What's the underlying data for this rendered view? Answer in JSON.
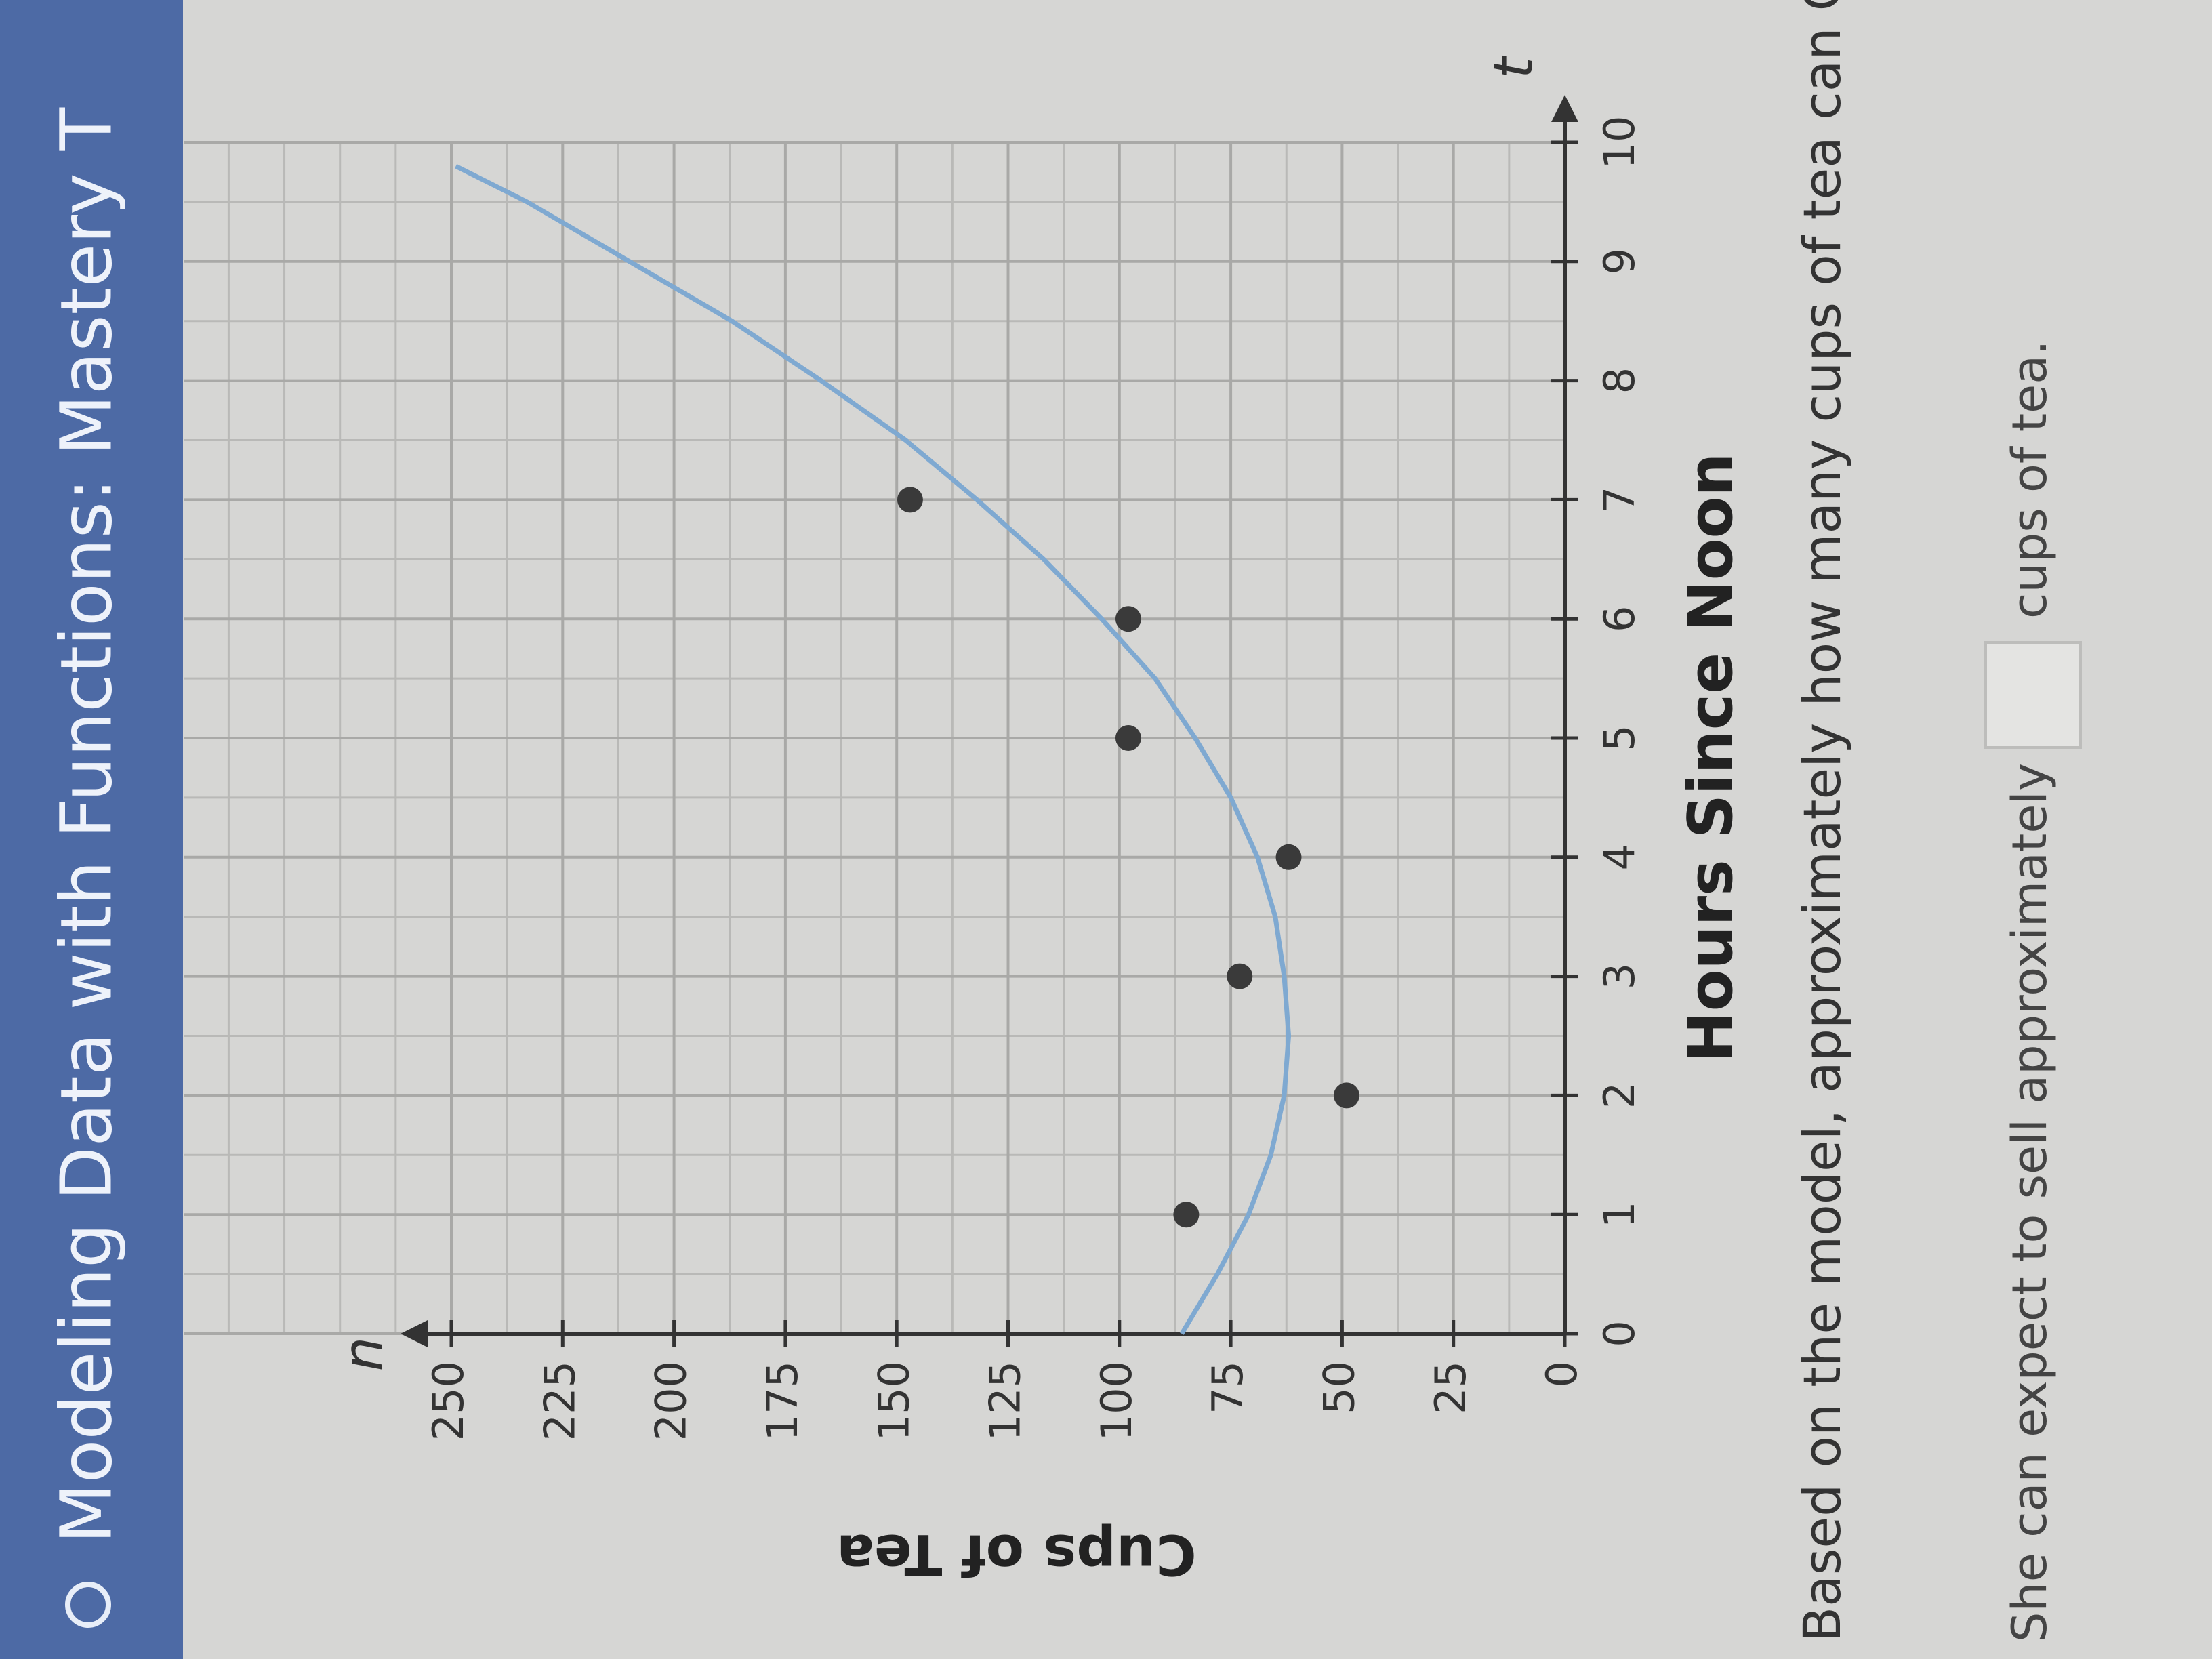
{
  "header": {
    "title": "Modeling Data with Functions: Mastery T"
  },
  "chart_data": {
    "type": "scatter",
    "y_label": "Cups of Tea",
    "x_label": "Hours Since Noon",
    "x_axis_symbol": "t",
    "y_axis_symbol": "n",
    "xlim": [
      0,
      10
    ],
    "ylim": [
      0,
      310
    ],
    "xticks": [
      0,
      1,
      2,
      3,
      4,
      5,
      6,
      7,
      8,
      9,
      10
    ],
    "yticks": [
      0,
      25,
      50,
      75,
      100,
      125,
      150,
      175,
      200,
      225,
      250
    ],
    "grid": true,
    "series": [
      {
        "x": [
          1,
          2,
          3,
          4,
          5,
          6,
          7
        ],
        "values": [
          85,
          49,
          73,
          62,
          98,
          98,
          147
        ],
        "color": "#3a3a3a"
      }
    ],
    "model": {
      "x": [
        0,
        0.5,
        1,
        1.5,
        2,
        2.5,
        3,
        3.5,
        4,
        4.5,
        5,
        5.5,
        6,
        6.5,
        7,
        7.5,
        8,
        8.5,
        9,
        9.5,
        9.8
      ],
      "values": [
        86,
        78,
        71,
        66,
        63,
        62,
        63,
        65,
        69,
        75,
        83,
        92,
        104,
        117,
        132,
        148,
        167,
        187,
        210,
        233,
        249
      ],
      "color": "#7fa9d1"
    }
  },
  "question": {
    "text": "Based on the model, approximately how many cups of tea can Ch",
    "answer_prefix": "She can expect to sell approximately",
    "answer_suffix": "cups of tea."
  }
}
